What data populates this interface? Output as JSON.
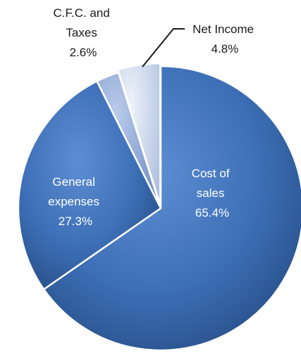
{
  "chart_data": {
    "type": "pie",
    "title": "",
    "slices": [
      {
        "name": "Cost of sales",
        "label_lines": [
          "Cost of",
          "sales"
        ],
        "value": 65.4,
        "value_text": "65.4%"
      },
      {
        "name": "General expenses",
        "label_lines": [
          "General",
          "expenses"
        ],
        "value": 27.3,
        "value_text": "27.3%"
      },
      {
        "name": "C.F.C. and Taxes",
        "label_lines": [
          "C.F.C. and",
          "Taxes"
        ],
        "value": 2.6,
        "value_text": "2.6%"
      },
      {
        "name": "Net Income",
        "label_lines": [
          "Net Income"
        ],
        "value": 4.8,
        "value_text": "4.8%"
      }
    ],
    "start": "12 o'clock",
    "direction": "clockwise",
    "legend": "none",
    "colors": {
      "slice_0": "#3b6db4",
      "slice_1": "#3b6db4",
      "slice_2": "#8aa6d6",
      "slice_3": "#c9d8f0",
      "edge": "#ffffff"
    }
  }
}
